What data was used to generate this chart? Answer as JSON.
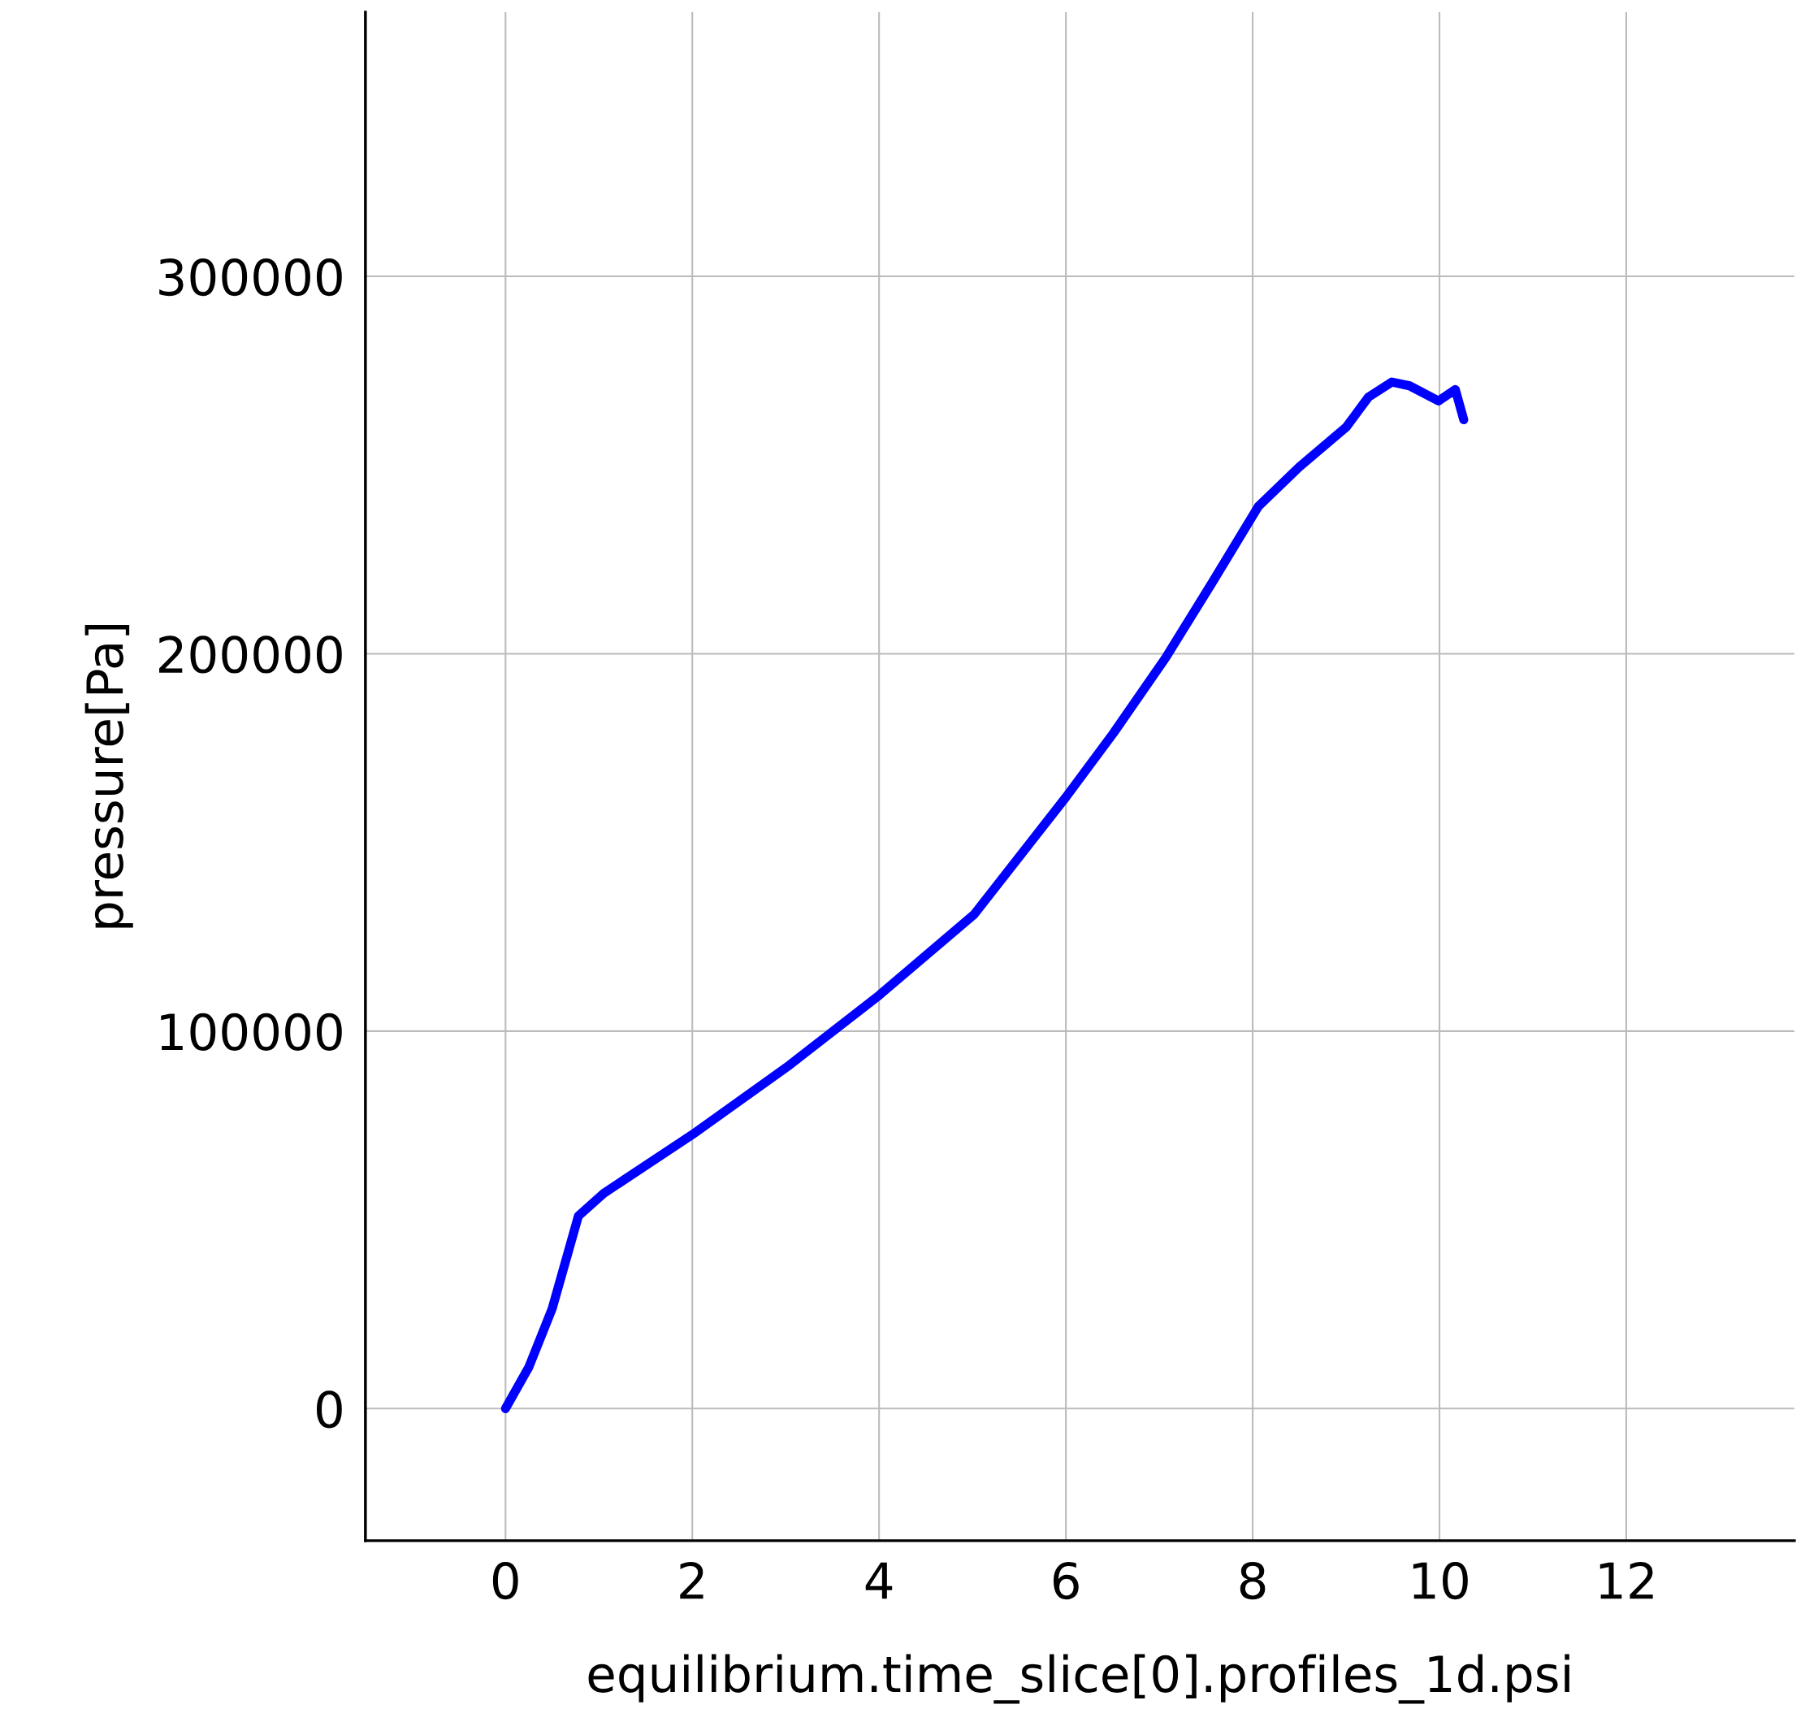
{
  "chart_data": {
    "type": "line",
    "xlabel": "equilibrium.time_slice[0].profiles_1d.psi",
    "ylabel": "pressure[Pa]",
    "x": [
      0,
      0.25,
      0.5,
      0.78,
      1.05,
      2,
      3.04,
      4,
      5.02,
      6,
      6.51,
      7.07,
      7.57,
      8.06,
      8.5,
      9,
      9.24,
      9.49,
      9.68,
      9.99,
      10.17,
      10.26
    ],
    "series": [
      {
        "color": "#0000ff",
        "values": [
          0,
          11000,
          26500,
          51000,
          57000,
          72600,
          91000,
          109500,
          131000,
          162000,
          179000,
          199000,
          219000,
          239000,
          249500,
          260000,
          268000,
          272000,
          271000,
          267000,
          270000,
          262000
        ]
      }
    ],
    "xlim": [
      -1.5,
      13.8
    ],
    "ylim": [
      -35000,
      370000
    ],
    "xticks": [
      0,
      2,
      4,
      6,
      8,
      10,
      12
    ],
    "yticks": [
      0,
      100000,
      200000,
      300000
    ],
    "grid": true,
    "line_style": "solid",
    "marker": "none"
  }
}
